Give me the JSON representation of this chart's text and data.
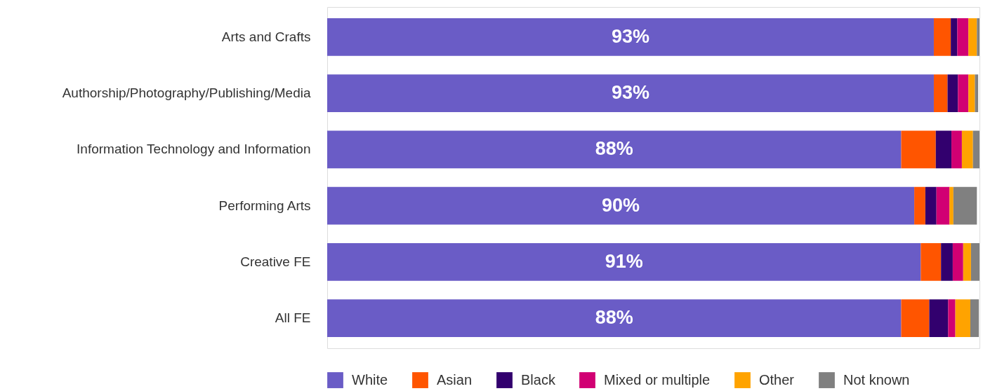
{
  "chart_data": {
    "type": "bar",
    "orientation": "horizontal",
    "stacked": true,
    "legend": "bottom",
    "categories": [
      "Arts and Crafts",
      "Authorship/Photography/Publishing/Media",
      "Information Technology and Information",
      "Performing Arts",
      "Creative FE",
      "All FE"
    ],
    "xlim": [
      0,
      100
    ],
    "series": [
      {
        "name": "White",
        "color": "#6a5cc6",
        "values": [
          93,
          93,
          88,
          90,
          91,
          88
        ],
        "value_labels": [
          "93%",
          "93%",
          "88%",
          "90%",
          "91%",
          "88%"
        ]
      },
      {
        "name": "Asian",
        "color": "#ff5500",
        "values": [
          2.6,
          2.1,
          5.3,
          1.7,
          3.1,
          4.3
        ]
      },
      {
        "name": "Black",
        "color": "#32006e",
        "values": [
          1.0,
          1.6,
          2.4,
          1.7,
          1.8,
          2.9
        ]
      },
      {
        "name": "Mixed or multiple",
        "color": "#d10073",
        "values": [
          1.7,
          1.6,
          1.6,
          2.0,
          1.6,
          1.1
        ]
      },
      {
        "name": "Other",
        "color": "#ffa300",
        "values": [
          1.3,
          1.0,
          1.7,
          0.6,
          1.2,
          2.3
        ]
      },
      {
        "name": "Not known",
        "color": "#808080",
        "values": [
          0.4,
          0.5,
          1.0,
          3.6,
          1.3,
          1.3
        ]
      }
    ]
  }
}
